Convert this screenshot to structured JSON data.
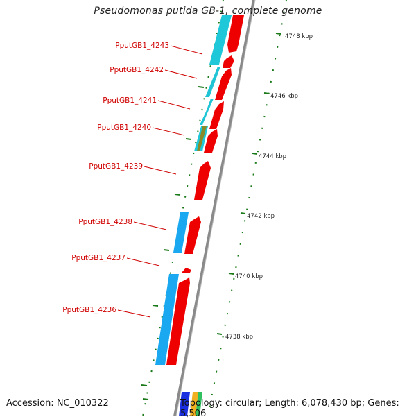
{
  "title": "Pseudomonas putida GB-1, complete genome",
  "accession": "Accession: NC_010322",
  "summary": "Topology: circular; Length: 6,078,430 bp; Genes: 5,506",
  "colors": {
    "forward_cds": "#ee0000",
    "reverse_cds": "#1ec8d8",
    "reverse_cds_alt": "#1aa8f0",
    "backbone": "#8a8a8a",
    "tick": "#1a7a1a",
    "label": "#d00000"
  },
  "genes": [
    {
      "label": "PputGB1_4243"
    },
    {
      "label": "PputGB1_4242"
    },
    {
      "label": "PputGB1_4241"
    },
    {
      "label": "PputGB1_4240"
    },
    {
      "label": "PputGB1_4239"
    },
    {
      "label": "PputGB1_4238"
    },
    {
      "label": "PputGB1_4237"
    },
    {
      "label": "PputGB1_4236"
    }
  ],
  "ticks": [
    {
      "label": "4748 kbp"
    },
    {
      "label": "4746 kbp"
    },
    {
      "label": "4744 kbp"
    },
    {
      "label": "4742 kbp"
    },
    {
      "label": "4740 kbp"
    },
    {
      "label": "4738 kbp"
    }
  ]
}
